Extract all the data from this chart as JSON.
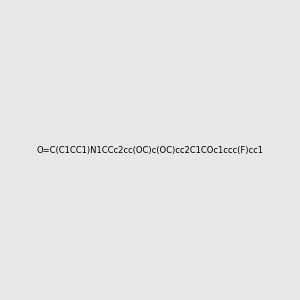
{
  "smiles": "O=C(C1CC1)N1CCc2cc(OC)c(OC)cc2C1COc1ccc(F)cc1",
  "image_size": 300,
  "background_color": "#e8e8e8",
  "bond_color": "#000000",
  "atom_colors": {
    "N": "#0000ff",
    "O": "#ff0000",
    "F": "#ff00ff"
  },
  "title": ""
}
